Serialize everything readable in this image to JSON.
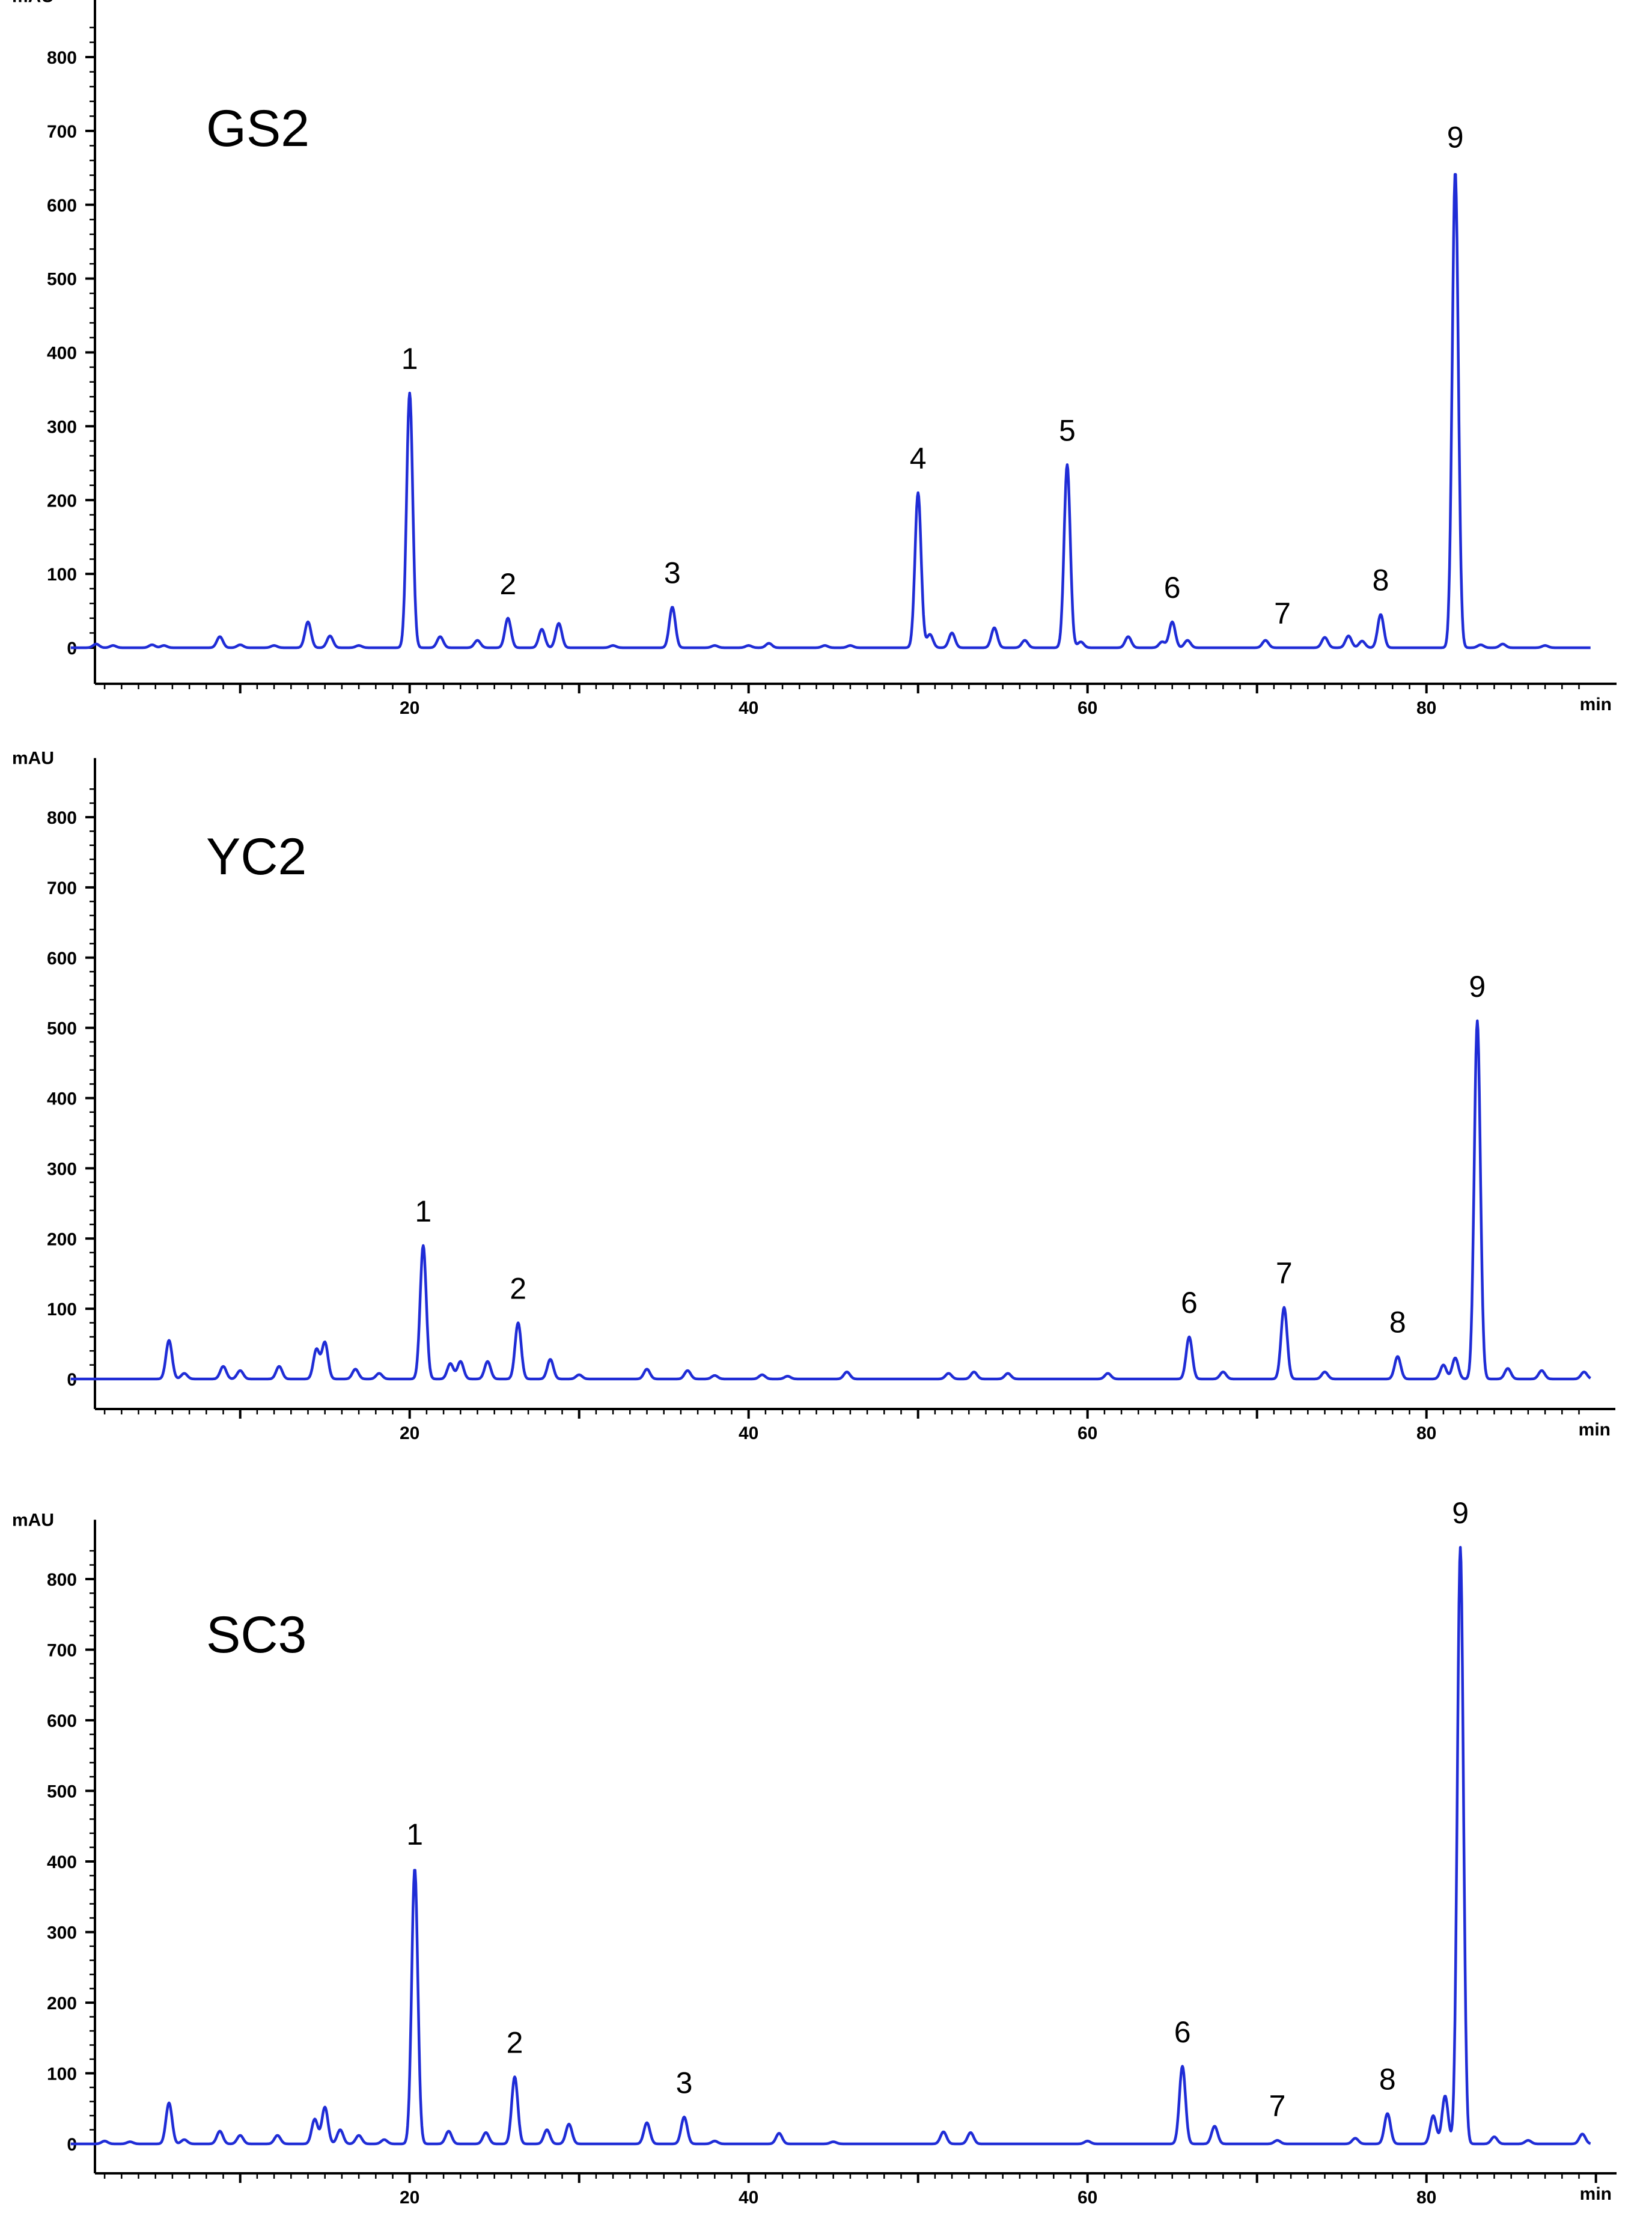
{
  "chart_data": [
    {
      "type": "line",
      "title": "GS2",
      "ylabel": "mAU",
      "xlabel": "min",
      "xlim": [
        0,
        90
      ],
      "ylim": [
        0,
        850
      ],
      "yticks": [
        0,
        100,
        200,
        300,
        400,
        500,
        600,
        700,
        800
      ],
      "xticks": [
        20,
        40,
        60,
        80
      ],
      "grid": false,
      "color": "#1f2cd6",
      "peak_labels": [
        {
          "label": "1",
          "x": 20.0,
          "y": 345
        },
        {
          "label": "2",
          "x": 25.8,
          "y": 40
        },
        {
          "label": "3",
          "x": 35.5,
          "y": 55
        },
        {
          "label": "4",
          "x": 50.0,
          "y": 210
        },
        {
          "label": "5",
          "x": 58.8,
          "y": 248
        },
        {
          "label": "6",
          "x": 65.0,
          "y": 35
        },
        {
          "label": "7",
          "x": 71.5,
          "y": 0
        },
        {
          "label": "8",
          "x": 77.3,
          "y": 45
        },
        {
          "label": "9",
          "x": 81.7,
          "y": 645
        }
      ],
      "peaks": [
        [
          1.5,
          5
        ],
        [
          2.5,
          3
        ],
        [
          4.8,
          4
        ],
        [
          5.5,
          3
        ],
        [
          8.8,
          15
        ],
        [
          10,
          4
        ],
        [
          12,
          3
        ],
        [
          14,
          35
        ],
        [
          15.3,
          16
        ],
        [
          17,
          3
        ],
        [
          20.0,
          345
        ],
        [
          21.8,
          15
        ],
        [
          24,
          10
        ],
        [
          25.8,
          40
        ],
        [
          27.8,
          25
        ],
        [
          28.8,
          33
        ],
        [
          32,
          3
        ],
        [
          35.5,
          55
        ],
        [
          38,
          3
        ],
        [
          40,
          3
        ],
        [
          41.2,
          6
        ],
        [
          44.5,
          3
        ],
        [
          46,
          3
        ],
        [
          50.0,
          210
        ],
        [
          50.7,
          18
        ],
        [
          52,
          20
        ],
        [
          54.5,
          27
        ],
        [
          56.3,
          10
        ],
        [
          58.8,
          248
        ],
        [
          59.6,
          8
        ],
        [
          62.4,
          15
        ],
        [
          64.4,
          8
        ],
        [
          65.0,
          35
        ],
        [
          65.9,
          10
        ],
        [
          70.5,
          10
        ],
        [
          74,
          14
        ],
        [
          75.4,
          16
        ],
        [
          76.2,
          9
        ],
        [
          77.3,
          45
        ],
        [
          81.7,
          645
        ],
        [
          83.2,
          4
        ],
        [
          84.5,
          5
        ],
        [
          87,
          3
        ]
      ]
    },
    {
      "type": "line",
      "title": "YC2",
      "ylabel": "mAU",
      "xlabel": "min",
      "xlim": [
        0,
        90
      ],
      "ylim": [
        0,
        850
      ],
      "yticks": [
        0,
        100,
        200,
        300,
        400,
        500,
        600,
        700,
        800
      ],
      "xticks": [
        20,
        40,
        60,
        80
      ],
      "grid": false,
      "color": "#1f2cd6",
      "peak_labels": [
        {
          "label": "1",
          "x": 20.8,
          "y": 190
        },
        {
          "label": "2",
          "x": 26.4,
          "y": 80
        },
        {
          "label": "6",
          "x": 66.0,
          "y": 60
        },
        {
          "label": "7",
          "x": 71.6,
          "y": 102
        },
        {
          "label": "8",
          "x": 78.3,
          "y": 32
        },
        {
          "label": "9",
          "x": 83.0,
          "y": 510
        }
      ],
      "peaks": [
        [
          5.8,
          55
        ],
        [
          6.7,
          8
        ],
        [
          9,
          18
        ],
        [
          10,
          12
        ],
        [
          12.3,
          18
        ],
        [
          14.5,
          42
        ],
        [
          15,
          52
        ],
        [
          16.8,
          14
        ],
        [
          18.2,
          8
        ],
        [
          20.8,
          190
        ],
        [
          22.4,
          22
        ],
        [
          23,
          25
        ],
        [
          24.6,
          25
        ],
        [
          26.4,
          80
        ],
        [
          28.3,
          28
        ],
        [
          30,
          6
        ],
        [
          34,
          14
        ],
        [
          36.4,
          12
        ],
        [
          38,
          5
        ],
        [
          40.8,
          6
        ],
        [
          42.3,
          4
        ],
        [
          45.8,
          10
        ],
        [
          51.8,
          8
        ],
        [
          53.3,
          10
        ],
        [
          55.3,
          8
        ],
        [
          61.2,
          8
        ],
        [
          66.0,
          60
        ],
        [
          68,
          10
        ],
        [
          71.6,
          102
        ],
        [
          74,
          10
        ],
        [
          78.3,
          32
        ],
        [
          81,
          20
        ],
        [
          81.7,
          30
        ],
        [
          83.0,
          510
        ],
        [
          84.8,
          15
        ],
        [
          86.8,
          12
        ],
        [
          89.3,
          10
        ]
      ]
    },
    {
      "type": "line",
      "title": "SC3",
      "ylabel": "mAU",
      "xlabel": "min",
      "xlim": [
        0,
        90
      ],
      "ylim": [
        0,
        850
      ],
      "yticks": [
        0,
        100,
        200,
        300,
        400,
        500,
        600,
        700,
        800
      ],
      "xticks": [
        20,
        40,
        60,
        80
      ],
      "grid": false,
      "color": "#1f2cd6",
      "peak_labels": [
        {
          "label": "1",
          "x": 20.3,
          "y": 390
        },
        {
          "label": "2",
          "x": 26.2,
          "y": 95
        },
        {
          "label": "3",
          "x": 36.2,
          "y": 38
        },
        {
          "label": "6",
          "x": 65.6,
          "y": 110
        },
        {
          "label": "7",
          "x": 71.2,
          "y": 5
        },
        {
          "label": "8",
          "x": 77.7,
          "y": 43
        },
        {
          "label": "9",
          "x": 82.0,
          "y": 845
        }
      ],
      "peaks": [
        [
          2,
          4
        ],
        [
          3.5,
          3
        ],
        [
          5.8,
          58
        ],
        [
          6.7,
          6
        ],
        [
          8.8,
          18
        ],
        [
          10,
          12
        ],
        [
          12.2,
          12
        ],
        [
          14.4,
          35
        ],
        [
          15,
          52
        ],
        [
          15.9,
          20
        ],
        [
          17,
          12
        ],
        [
          18.5,
          6
        ],
        [
          20.3,
          390
        ],
        [
          22.3,
          18
        ],
        [
          24.5,
          16
        ],
        [
          26.2,
          95
        ],
        [
          28.1,
          20
        ],
        [
          29.4,
          28
        ],
        [
          34,
          30
        ],
        [
          36.2,
          38
        ],
        [
          38,
          4
        ],
        [
          41.8,
          15
        ],
        [
          45,
          3
        ],
        [
          51.5,
          17
        ],
        [
          53.1,
          16
        ],
        [
          60,
          4
        ],
        [
          65.6,
          110
        ],
        [
          67.5,
          25
        ],
        [
          71.2,
          5
        ],
        [
          75.8,
          8
        ],
        [
          77.7,
          43
        ],
        [
          80.4,
          40
        ],
        [
          81.1,
          68
        ],
        [
          82.0,
          845
        ],
        [
          84,
          10
        ],
        [
          86,
          5
        ],
        [
          89.2,
          14
        ]
      ]
    }
  ]
}
